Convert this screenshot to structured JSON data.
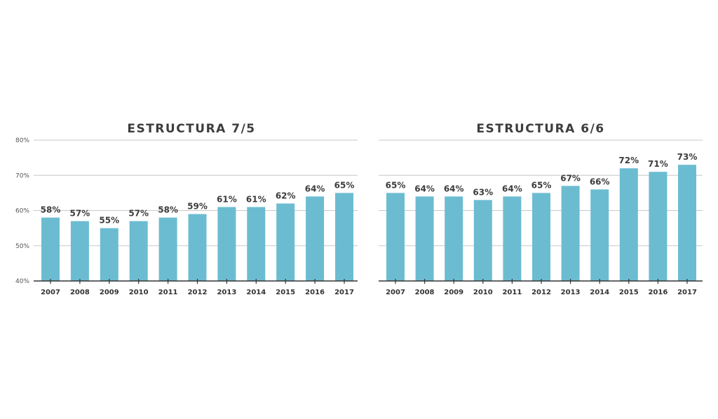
{
  "chart_data": [
    {
      "type": "bar",
      "title": "ESTRUCTURA 7/5",
      "categories": [
        "2007",
        "2008",
        "2009",
        "2010",
        "2011",
        "2012",
        "2013",
        "2014",
        "2015",
        "2016",
        "2017"
      ],
      "values": [
        58,
        57,
        55,
        57,
        58,
        59,
        61,
        61,
        62,
        64,
        65
      ],
      "data_labels": [
        "58%",
        "57%",
        "55%",
        "57%",
        "58%",
        "59%",
        "61%",
        "61%",
        "62%",
        "64%",
        "65%"
      ],
      "ylim": [
        40,
        80
      ],
      "yticks": [
        40,
        50,
        60,
        70,
        80
      ],
      "ytick_labels": [
        "40%",
        "50%",
        "60%",
        "70%",
        "80%"
      ],
      "grid": true,
      "xlabel": "",
      "ylabel": ""
    },
    {
      "type": "bar",
      "title": "ESTRUCTURA 6/6",
      "categories": [
        "2007",
        "2008",
        "2009",
        "2010",
        "2011",
        "2012",
        "2013",
        "2014",
        "2015",
        "2016",
        "2017"
      ],
      "values": [
        65,
        64,
        64,
        63,
        64,
        65,
        67,
        66,
        72,
        71,
        73
      ],
      "data_labels": [
        "65%",
        "64%",
        "64%",
        "63%",
        "64%",
        "65%",
        "67%",
        "66%",
        "72%",
        "71%",
        "73%"
      ],
      "ylim": [
        40,
        80
      ],
      "yticks": [
        40,
        50,
        60,
        70,
        80
      ],
      "grid": true,
      "xlabel": "",
      "ylabel": ""
    }
  ],
  "colors": {
    "bar": "#6cbcd1",
    "grid": "#c8c8c8",
    "axis": "#333333"
  }
}
